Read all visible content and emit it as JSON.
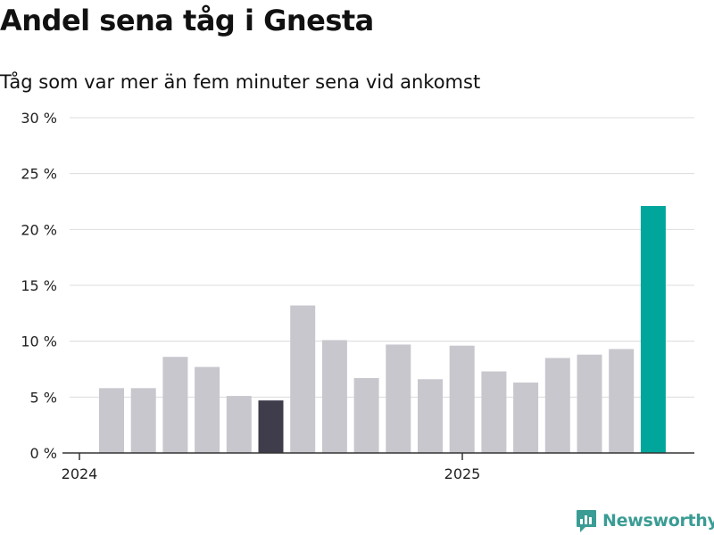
{
  "header": {
    "title": "Andel sena tåg i Gnesta",
    "subtitle": "Tåg som var mer än fem minuter sena vid ankomst"
  },
  "brand": {
    "name": "Newsworthy",
    "icon": "newsworthy-logo-icon",
    "color": "#3a9c94"
  },
  "chart_data": {
    "type": "bar",
    "title": "Andel sena tåg i Gnesta",
    "subtitle": "Tåg som var mer än fem minuter sena vid ankomst",
    "xlabel": "",
    "ylabel": "",
    "ylim": [
      0,
      30
    ],
    "yticks": [
      0,
      5,
      10,
      15,
      20,
      25,
      30
    ],
    "ytick_labels": [
      "0 %",
      "5 %",
      "10 %",
      "15 %",
      "20 %",
      "25 %",
      "30 %"
    ],
    "xtick_labels": [
      "2024",
      "2025"
    ],
    "grid": true,
    "legend": "none",
    "values": [
      5.8,
      5.8,
      8.6,
      7.7,
      5.1,
      4.7,
      13.2,
      10.1,
      6.7,
      9.7,
      6.6,
      9.6,
      7.3,
      6.3,
      8.5,
      8.8,
      9.3,
      22.1
    ],
    "highlight": {
      "dark_index": 5,
      "accent_index": 17
    },
    "colors": {
      "bar": "#c8c7ce",
      "dark": "#3f3d4b",
      "accent": "#00a59b",
      "grid": "#dcdcdc",
      "axis": "#333333"
    }
  }
}
